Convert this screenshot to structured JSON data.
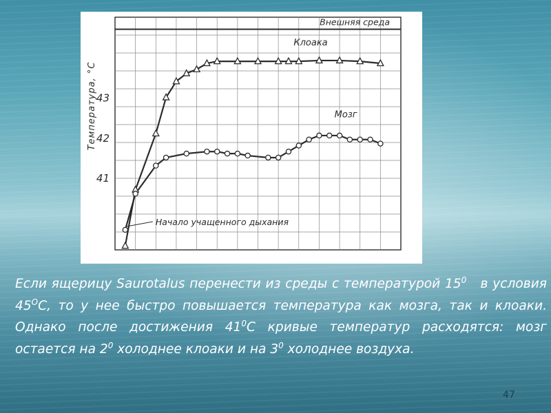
{
  "chart_data": {
    "type": "line",
    "ylabel": "Температура, °С",
    "xlabel": "",
    "y_ticks": [
      "41",
      "42",
      "43"
    ],
    "ylim": [
      39.2,
      45.0
    ],
    "xlim": [
      0,
      28
    ],
    "grid": true,
    "series": [
      {
        "name": "Клоака",
        "marker": "triangle",
        "x": [
          1,
          2,
          4,
          5,
          6,
          7,
          8,
          9,
          10,
          12,
          14,
          16,
          17,
          18,
          20,
          22,
          24,
          26
        ],
        "values": [
          39.3,
          40.7,
          42.1,
          43.0,
          43.4,
          43.6,
          43.7,
          43.85,
          43.9,
          43.9,
          43.9,
          43.9,
          43.9,
          43.9,
          43.92,
          43.92,
          43.9,
          43.85
        ]
      },
      {
        "name": "Мозг",
        "marker": "circle",
        "x": [
          1,
          2,
          4,
          5,
          7,
          9,
          10,
          11,
          12,
          13,
          15,
          16,
          17,
          18,
          19,
          20,
          21,
          22,
          23,
          24,
          25,
          26
        ],
        "values": [
          39.7,
          40.6,
          41.3,
          41.5,
          41.6,
          41.65,
          41.65,
          41.6,
          41.6,
          41.55,
          41.5,
          41.5,
          41.65,
          41.8,
          41.95,
          42.05,
          42.05,
          42.05,
          41.95,
          41.95,
          41.95,
          41.85
        ]
      }
    ],
    "reference_lines": [
      {
        "label": "Внешняя среда",
        "y": 44.7
      }
    ],
    "annotations": [
      {
        "text": "Начало учащенного дыхания",
        "points_to_x": 1
      }
    ]
  },
  "caption": {
    "p1": "Если ящерицу ",
    "genus": "Saurotalus",
    "p2": " перенести из среды с температурой 15",
    "sup1": "0",
    "p3": "   в условия 45",
    "sup2": "O",
    "p4": "С, то у нее быстро повышается температура как мозга, так и клоаки. Однако после достижения 41",
    "sup3": "0",
    "p5": "С кривые температур расходятся: мозг остается на 2",
    "sup4": "0",
    "p6": " холоднее клоаки и на 3",
    "sup5": "0",
    "p7": " холоднее воздуха."
  },
  "slide_number": "47",
  "colors": {
    "ink": "#2b2b2b",
    "grid": "#8a8a8a",
    "caption_text": "#ffffff"
  }
}
